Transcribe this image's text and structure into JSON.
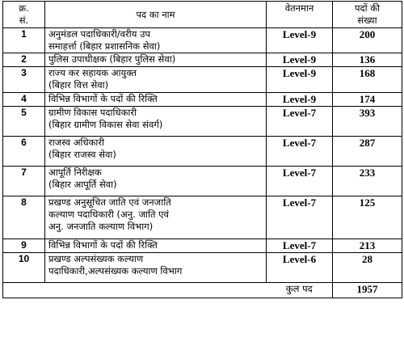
{
  "headers": {
    "sno_line1": "क्र.",
    "sno_line2": "सं.",
    "post_name": "पद का नाम",
    "pay_level": "वेतनमान",
    "posts_line1": "पदों की",
    "posts_line2": "संख्या"
  },
  "rows": [
    {
      "sno": "1",
      "name_l1": "अनुमंडल पदाधिकारी/वरीय उप",
      "name_l2": "समाहर्त्ता (बिहार प्रशासनिक सेवा)",
      "name_l3": "",
      "pay": "Level-9",
      "count": "200"
    },
    {
      "sno": "2",
      "name_l1": "पुलिस उपाधीक्षक (बिहार पुलिस सेवा)",
      "name_l2": "",
      "name_l3": "",
      "pay": "Level-9",
      "count": "136"
    },
    {
      "sno": "3",
      "name_l1": "राज्य कर सहायक आयुक्त",
      "name_l2": "(बिहार वित्त सेवा)",
      "name_l3": "",
      "pay": "Level-9",
      "count": "168"
    },
    {
      "sno": "4",
      "name_l1": "विभिन्न विभागों के पदों की रिक्ति",
      "name_l2": "",
      "name_l3": "",
      "pay": "Level-9",
      "count": "174"
    },
    {
      "sno": "5",
      "name_l1": "ग्रामीण विकास पदाधिकारी",
      "name_l2": "(बिहार ग्रामीण विकास सेवा संवर्ग)",
      "name_l3": "",
      "pay": "Level-7",
      "count": "393"
    },
    {
      "sno": "6",
      "name_l1": "राजस्व अधिकारी",
      "name_l2": "(बिहार राजस्व सेवा)",
      "name_l3": "",
      "pay": "Level-7",
      "count": "287"
    },
    {
      "sno": "7",
      "name_l1": "आपूर्ति निरीक्षक",
      "name_l2": "(बिहार आपूर्ति सेवा)",
      "name_l3": "",
      "pay": "Level-7",
      "count": "233"
    },
    {
      "sno": "8",
      "name_l1": "प्रखण्ड अनुसूचित जाति एवं जनजाति",
      "name_l2": "कल्याण पदाधिकारी (अनु. जाति एवं",
      "name_l3": "अनु. जनजाति कल्याण विभाग)",
      "pay": "Level-7",
      "count": "125"
    },
    {
      "sno": "9",
      "name_l1": "विभिन्न विभागों के पदों की रिक्ति",
      "name_l2": "",
      "name_l3": "",
      "pay": "Level-7",
      "count": "213"
    },
    {
      "sno": "10",
      "name_l1": "प्रखण्ड अल्पसंख्यक कल्याण",
      "name_l2": "पदाधिकारी,अल्पसंख्यक कल्याण विभाग",
      "name_l3": "",
      "pay": "Level-6",
      "count": "28"
    }
  ],
  "total": {
    "label": "कुल पद",
    "count": "1957"
  }
}
